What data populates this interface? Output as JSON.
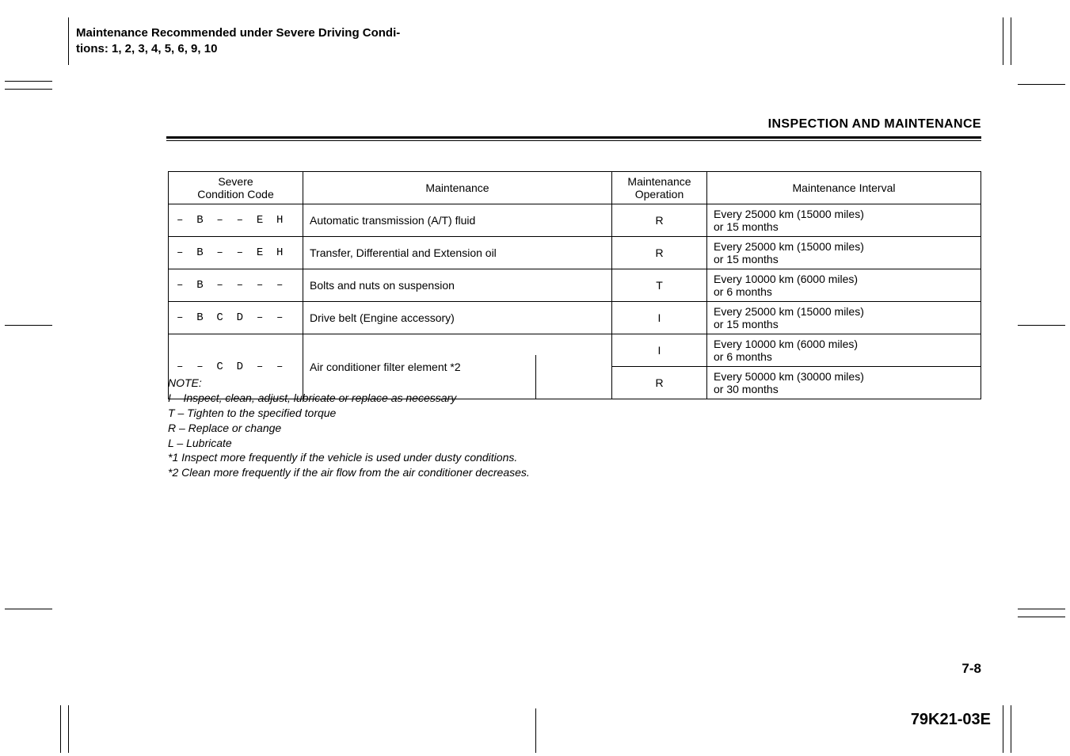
{
  "header": {
    "title_line1": "Maintenance Recommended under Severe Driving Condi-",
    "title_line2": "tions: 1, 2, 3, 4, 5, 6, 9, 10"
  },
  "section_title": "INSPECTION AND MAINTENANCE",
  "table": {
    "head": {
      "code_l1": "Severe",
      "code_l2": "Condition Code",
      "maint": "Maintenance",
      "op_l1": "Maintenance",
      "op_l2": "Operation",
      "int": "Maintenance Interval"
    },
    "rows": [
      {
        "code": "–  B  –  –  E  H",
        "maint": "Automatic transmission (A/T) fluid",
        "op": "R",
        "int": "Every 25000 km (15000 miles)\nor 15 months"
      },
      {
        "code": "–  B  –  –  E  H",
        "maint": "Transfer, Differential and Extension oil",
        "op": "R",
        "int": "Every 25000 km (15000 miles)\nor 15 months"
      },
      {
        "code": "–  B  –  –  –  –",
        "maint": "Bolts and nuts on suspension",
        "op": "T",
        "int": "Every 10000 km (6000 miles)\nor 6 months"
      },
      {
        "code": "–  B  C  D  –  –",
        "maint": "Drive belt (Engine accessory)",
        "op": "I",
        "int": "Every 25000 km (15000 miles)\nor 15 months"
      }
    ],
    "merged_row": {
      "code": "–  –  C  D  –  –",
      "maint": "Air conditioner filter element *2",
      "ops": [
        {
          "op": "I",
          "int": "Every 10000 km (6000 miles)\nor 6 months"
        },
        {
          "op": "R",
          "int": "Every 50000 km (30000 miles)\nor 30 months"
        }
      ]
    }
  },
  "notes": {
    "head": "NOTE:",
    "lines": [
      " I  – Inspect, clean, adjust, lubricate or replace as necessary",
      "T – Tighten to the specified torque",
      "R – Replace or change",
      "L – Lubricate",
      "*1 Inspect more frequently if the vehicle is used under dusty conditions.",
      "*2 Clean more frequently if the air flow from the air conditioner decreases."
    ]
  },
  "page_number": "7-8",
  "doc_code": "79K21-03E"
}
